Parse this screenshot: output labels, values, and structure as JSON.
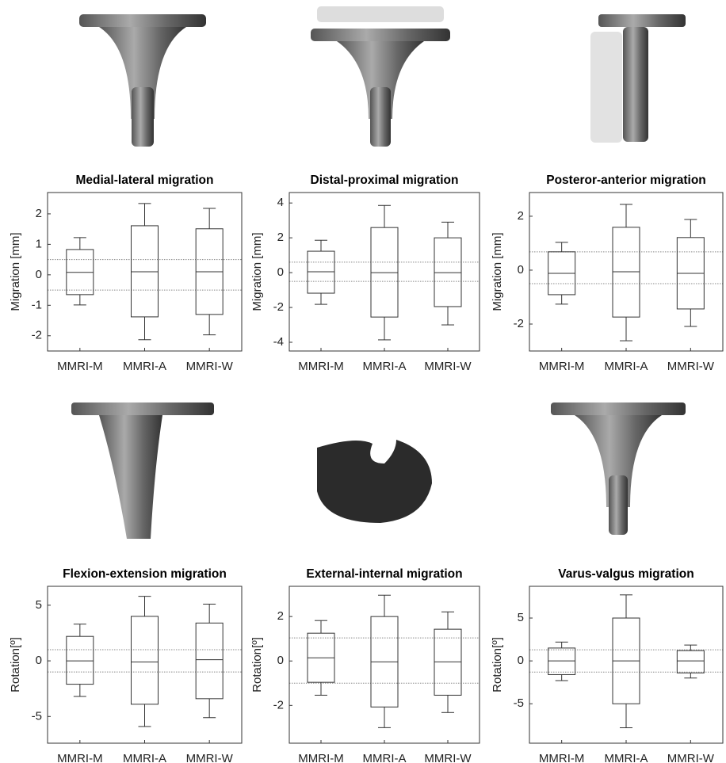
{
  "chart_data": [
    {
      "type": "box",
      "title": "Medial-lateral migration",
      "y_label": "Migration [mm]",
      "categories": [
        "MMRI-M",
        "MMRI-A",
        "MMRI-W"
      ],
      "boxes": [
        {
          "low": -0.99,
          "q1": -0.65,
          "median": 0.08,
          "q3": 0.83,
          "high": 1.22
        },
        {
          "low": -2.13,
          "q1": -1.38,
          "median": 0.1,
          "q3": 1.61,
          "high": 2.34
        },
        {
          "low": -1.97,
          "q1": -1.3,
          "median": 0.1,
          "q3": 1.51,
          "high": 2.18
        }
      ],
      "reference_lines": [
        0.5,
        -0.5
      ],
      "ylim": [
        -2.5,
        2.7
      ],
      "yticks": [
        -2,
        -1,
        0,
        1,
        2
      ]
    },
    {
      "type": "box",
      "title": "Distal-proximal migration",
      "y_label": "Migration [mm]",
      "categories": [
        "MMRI-M",
        "MMRI-A",
        "MMRI-W"
      ],
      "boxes": [
        {
          "low": -1.82,
          "q1": -1.18,
          "median": 0.05,
          "q3": 1.23,
          "high": 1.86
        },
        {
          "low": -3.86,
          "q1": -2.55,
          "median": 0,
          "q3": 2.59,
          "high": 3.86
        },
        {
          "low": -3.0,
          "q1": -1.95,
          "median": 0,
          "q3": 2.0,
          "high": 2.9
        }
      ],
      "reference_lines": [
        0.6,
        -0.5
      ],
      "ylim": [
        -4.5,
        4.6
      ],
      "yticks": [
        -4,
        -2,
        0,
        2,
        4
      ]
    },
    {
      "type": "box",
      "title": "Posteror-anterior migration",
      "y_label": "Migration [mm]",
      "categories": [
        "MMRI-M",
        "MMRI-A",
        "MMRI-W"
      ],
      "boxes": [
        {
          "low": -1.26,
          "q1": -0.91,
          "median": -0.12,
          "q3": 0.68,
          "high": 1.03
        },
        {
          "low": -2.62,
          "q1": -1.74,
          "median": -0.06,
          "q3": 1.59,
          "high": 2.44
        },
        {
          "low": -2.09,
          "q1": -1.44,
          "median": -0.12,
          "q3": 1.21,
          "high": 1.88
        }
      ],
      "reference_lines": [
        0.68,
        -0.5
      ],
      "ylim": [
        -3.0,
        2.88
      ],
      "yticks": [
        -2,
        0,
        2
      ]
    },
    {
      "type": "box",
      "title": "Flexion-extension migration",
      "y_label": "Rotation[º]",
      "categories": [
        "MMRI-M",
        "MMRI-A",
        "MMRI-W"
      ],
      "boxes": [
        {
          "low": -3.2,
          "q1": -2.1,
          "median": 0,
          "q3": 2.2,
          "high": 3.3
        },
        {
          "low": -5.9,
          "q1": -3.9,
          "median": -0.1,
          "q3": 4.0,
          "high": 5.8
        },
        {
          "low": -5.1,
          "q1": -3.4,
          "median": 0.1,
          "q3": 3.4,
          "high": 5.1
        }
      ],
      "reference_lines": [
        1.0,
        -1.0
      ],
      "ylim": [
        -7.4,
        6.7
      ],
      "yticks": [
        -5,
        0,
        5
      ]
    },
    {
      "type": "box",
      "title": "External-internal migration",
      "y_label": "Rotation[º]",
      "categories": [
        "MMRI-M",
        "MMRI-A",
        "MMRI-W"
      ],
      "boxes": [
        {
          "low": -1.54,
          "q1": -0.96,
          "median": 0.14,
          "q3": 1.25,
          "high": 1.82
        },
        {
          "low": -3.0,
          "q1": -2.07,
          "median": -0.04,
          "q3": 2.0,
          "high": 2.96
        },
        {
          "low": -2.32,
          "q1": -1.54,
          "median": -0.04,
          "q3": 1.43,
          "high": 2.21
        }
      ],
      "reference_lines": [
        1.04,
        -1.0
      ],
      "ylim": [
        -3.7,
        3.36
      ],
      "yticks": [
        -2,
        0,
        2
      ]
    },
    {
      "type": "box",
      "title": "Varus-valgus migration",
      "y_label": "Rotation[º]",
      "categories": [
        "MMRI-M",
        "MMRI-A",
        "MMRI-W"
      ],
      "boxes": [
        {
          "low": -2.3,
          "q1": -1.6,
          "median": 0,
          "q3": 1.5,
          "high": 2.2
        },
        {
          "low": -7.8,
          "q1": -5.0,
          "median": 0,
          "q3": 5.0,
          "high": 7.7
        },
        {
          "low": -2.0,
          "q1": -1.4,
          "median": 0,
          "q3": 1.2,
          "high": 1.85
        }
      ],
      "reference_lines": [
        1.3,
        -1.3
      ],
      "ylim": [
        -9.6,
        8.7
      ],
      "yticks": [
        -5,
        0,
        5
      ]
    }
  ]
}
